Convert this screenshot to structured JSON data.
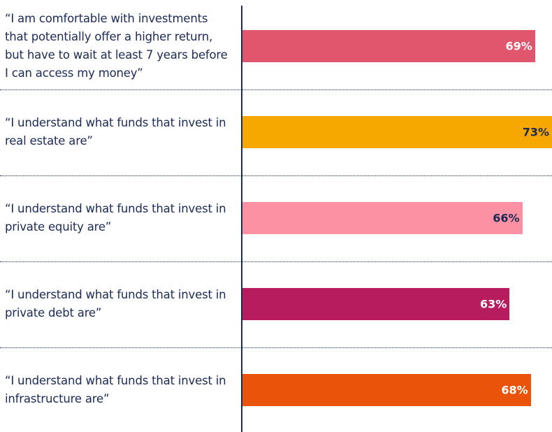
{
  "chart_data": {
    "type": "bar",
    "orientation": "horizontal",
    "categories": [
      "“I am comfortable with investments that potentially offer a higher return, but have to wait at least 7 years before I can access my money”",
      "“I understand what funds that invest in real estate are”",
      "“I understand what funds that invest in private equity are”",
      "“I understand what funds that invest in private debt are”",
      "“I understand what funds that invest in infrastructure are”"
    ],
    "values": [
      69,
      73,
      66,
      63,
      68
    ],
    "value_labels": [
      "69%",
      "73%",
      "66%",
      "63%",
      "68%"
    ],
    "colors": [
      "#e0566c",
      "#f6a800",
      "#fb91a2",
      "#b71c5e",
      "#e9540a"
    ],
    "label_colors": [
      "#ffffff",
      "#1b2a57",
      "#1b2a57",
      "#ffffff",
      "#ffffff"
    ]
  }
}
